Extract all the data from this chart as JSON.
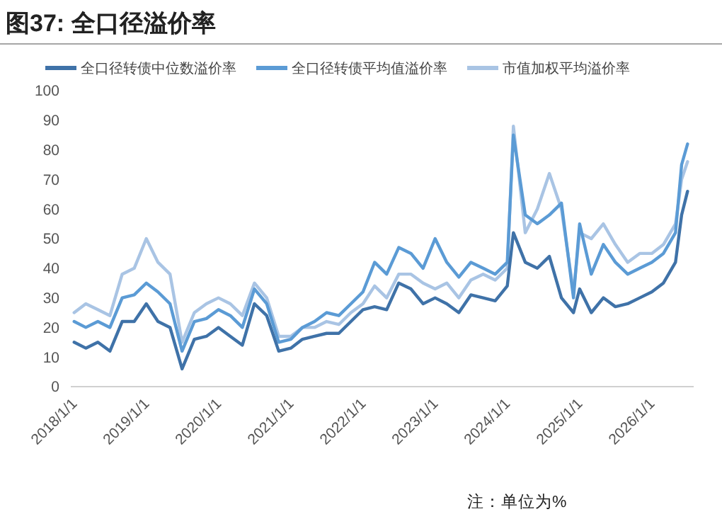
{
  "chart_data": {
    "type": "line",
    "title": "图37: 全口径溢价率",
    "annotations": [
      "注：单位为%"
    ],
    "x": [
      "2018-01-01",
      "2018-03-01",
      "2018-05-01",
      "2018-07-01",
      "2018-09-01",
      "2018-11-01",
      "2019-01-01",
      "2019-03-01",
      "2019-05-01",
      "2019-07-01",
      "2019-09-01",
      "2019-11-01",
      "2020-01-01",
      "2020-03-01",
      "2020-05-01",
      "2020-07-01",
      "2020-09-01",
      "2020-11-01",
      "2021-01-01",
      "2021-03-01",
      "2021-05-01",
      "2021-07-01",
      "2021-09-01",
      "2021-11-01",
      "2022-01-01",
      "2022-03-01",
      "2022-05-01",
      "2022-07-01",
      "2022-09-01",
      "2022-11-01",
      "2023-01-01",
      "2023-03-01",
      "2023-05-01",
      "2023-07-01",
      "2023-09-01",
      "2023-11-01",
      "2024-01-01",
      "2024-02-01",
      "2024-04-01",
      "2024-06-01",
      "2024-08-01",
      "2024-10-01",
      "2024-12-01",
      "2025-01-01",
      "2025-03-01",
      "2025-05-01",
      "2025-07-01",
      "2025-09-01",
      "2025-11-01",
      "2026-01-01",
      "2026-03-01",
      "2026-05-01",
      "2026-06-01",
      "2026-07-01"
    ],
    "series": [
      {
        "name": "全口径转债中位数溢价率",
        "color": "#3f72a8",
        "values": [
          15,
          13,
          15,
          12,
          22,
          22,
          28,
          22,
          20,
          6,
          16,
          17,
          20,
          17,
          14,
          28,
          24,
          12,
          13,
          16,
          17,
          18,
          18,
          22,
          26,
          27,
          26,
          35,
          33,
          28,
          30,
          28,
          25,
          31,
          30,
          29,
          34,
          52,
          42,
          40,
          44,
          30,
          25,
          33,
          25,
          30,
          27,
          28,
          30,
          32,
          35,
          42,
          58,
          66
        ]
      },
      {
        "name": "全口径转债平均值溢价率",
        "color": "#5b9bd5",
        "values": [
          22,
          20,
          22,
          20,
          30,
          31,
          35,
          32,
          28,
          12,
          22,
          23,
          26,
          24,
          20,
          33,
          28,
          15,
          16,
          20,
          22,
          25,
          24,
          28,
          32,
          42,
          38,
          47,
          45,
          40,
          50,
          42,
          37,
          42,
          40,
          38,
          42,
          85,
          58,
          55,
          58,
          62,
          30,
          55,
          38,
          48,
          42,
          38,
          40,
          42,
          45,
          52,
          75,
          82
        ]
      },
      {
        "name": "市值加权平均溢价率",
        "color": "#a9c4e4",
        "values": [
          25,
          28,
          26,
          24,
          38,
          40,
          50,
          42,
          38,
          15,
          25,
          28,
          30,
          28,
          24,
          35,
          30,
          17,
          17,
          20,
          20,
          22,
          21,
          25,
          28,
          34,
          30,
          38,
          38,
          35,
          33,
          35,
          30,
          36,
          38,
          36,
          40,
          88,
          52,
          60,
          72,
          60,
          32,
          52,
          50,
          55,
          48,
          42,
          45,
          45,
          48,
          55,
          70,
          76
        ]
      }
    ],
    "xlim": [
      "2017-12-15",
      "2026-08-01"
    ],
    "xticks": [
      {
        "value": "2018-01-01",
        "label": "2018/1/1"
      },
      {
        "value": "2019-01-01",
        "label": "2019/1/1"
      },
      {
        "value": "2020-01-01",
        "label": "2020/1/1"
      },
      {
        "value": "2021-01-01",
        "label": "2021/1/1"
      },
      {
        "value": "2022-01-01",
        "label": "2022/1/1"
      },
      {
        "value": "2023-01-01",
        "label": "2023/1/1"
      },
      {
        "value": "2024-01-01",
        "label": "2024/1/1"
      },
      {
        "value": "2025-01-01",
        "label": "2025/1/1"
      },
      {
        "value": "2026-01-01",
        "label": "2026/1/1"
      }
    ],
    "ylim": [
      0,
      100
    ],
    "yticks": [
      0,
      10,
      20,
      30,
      40,
      50,
      60,
      70,
      80,
      90,
      100
    ],
    "grid": false,
    "legend": "top",
    "line_style": "solid"
  }
}
